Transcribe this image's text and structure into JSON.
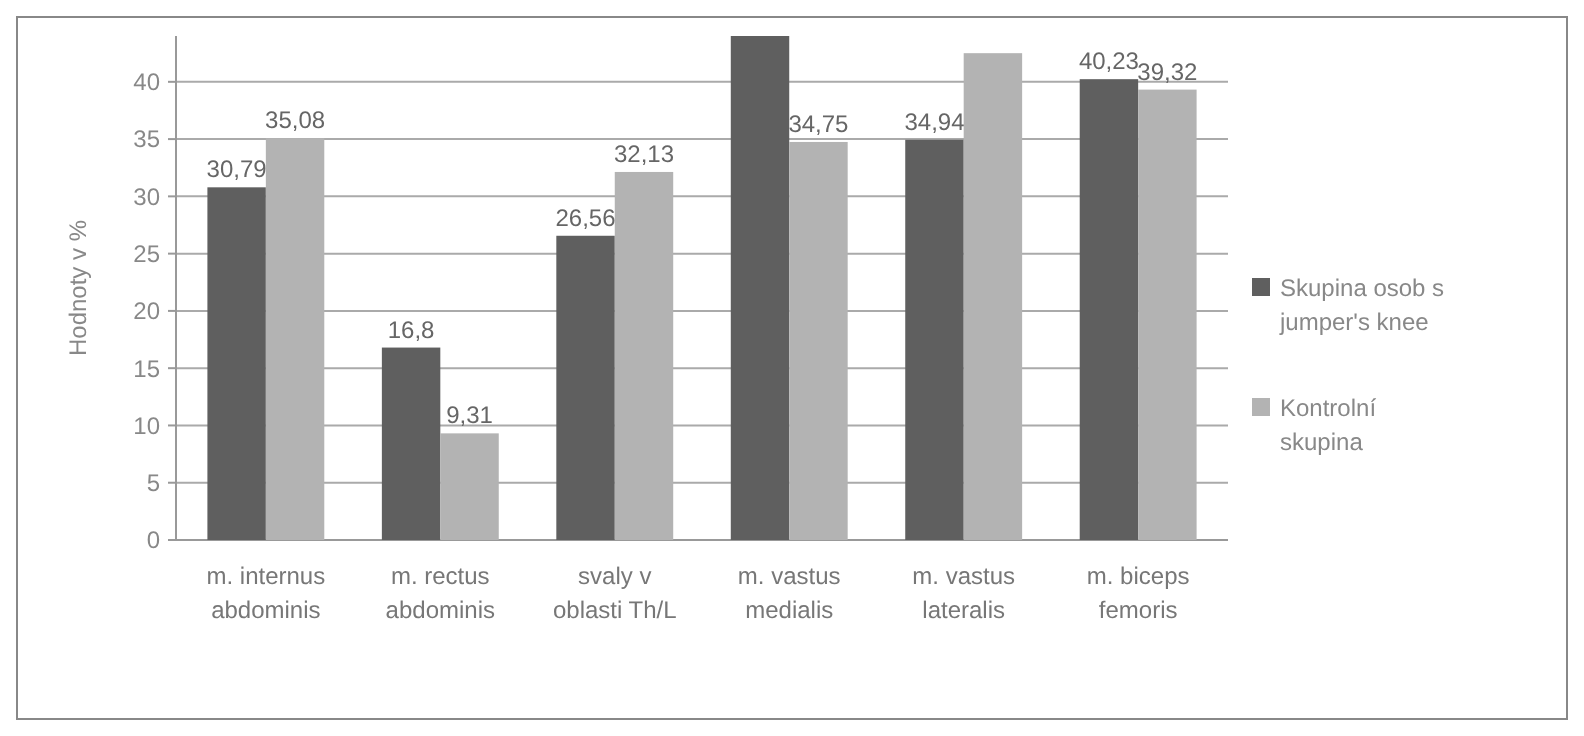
{
  "chart_data": {
    "type": "bar",
    "ylabel": "Hodnoty v %",
    "categories": [
      "m. internus abdominis",
      "m. rectus abdominis",
      "svaly v oblasti Th/L",
      "m. vastus medialis",
      "m. vastus lateralis",
      "m. biceps femoris"
    ],
    "series": [
      {
        "name": "Skupina osob s jumper's knee",
        "color": "#5f5f5f",
        "values": [
          30.79,
          16.8,
          26.56,
          44,
          34.94,
          40.23
        ],
        "value_labels": [
          "30,79",
          "16,8",
          "26,56",
          null,
          "34,94",
          "40,23"
        ]
      },
      {
        "name": "Kontrolní skupina",
        "color": "#b3b3b3",
        "values": [
          35.08,
          9.31,
          32.13,
          34.75,
          42.5,
          39.32
        ],
        "value_labels": [
          "35,08",
          "9,31",
          "32,13",
          "34,75",
          null,
          "39,32"
        ]
      }
    ],
    "ylim": [
      0,
      44
    ],
    "yticks": [
      0,
      5,
      10,
      15,
      20,
      25,
      30,
      35,
      40
    ],
    "grid": "y",
    "legend": "right"
  }
}
